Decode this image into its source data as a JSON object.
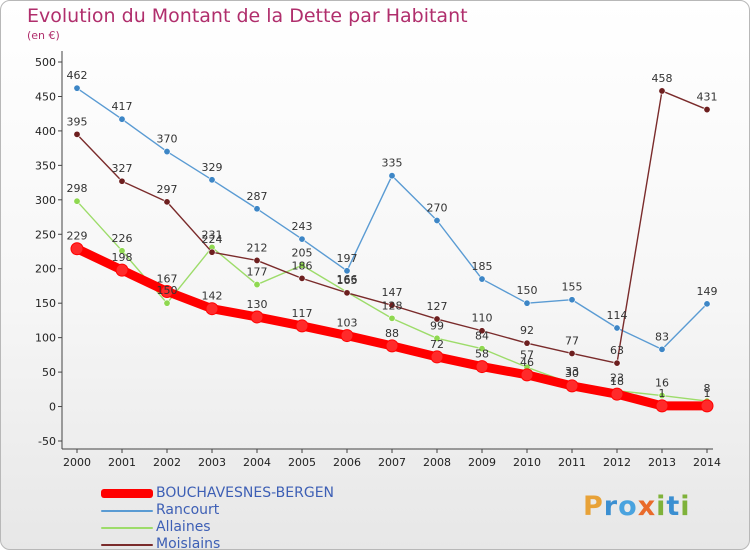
{
  "title": "Evolution du Montant de la Dette par Habitant",
  "subtitle": "(en €)",
  "logo": "Proxiti",
  "chart_data": {
    "type": "line",
    "title": "Evolution du Montant de la Dette par Habitant",
    "subtitle": "(en €)",
    "xlabel": "",
    "ylabel": "",
    "x": [
      "2000",
      "2001",
      "2002",
      "2003",
      "2004",
      "2005",
      "2006",
      "2007",
      "2008",
      "2009",
      "2010",
      "2011",
      "2012",
      "2013",
      "2014"
    ],
    "ylim": [
      -50,
      500
    ],
    "yticks": [
      -50,
      0,
      50,
      100,
      150,
      200,
      250,
      300,
      350,
      400,
      450,
      500
    ],
    "grid": false,
    "legend_position": "bottom",
    "series": [
      {
        "name": "BOUCHAVESNES-BERGEN",
        "color": "#ff0000",
        "point_color": "#ff2a2a",
        "values": [
          229,
          198,
          167,
          142,
          130,
          117,
          103,
          88,
          72,
          58,
          46,
          30,
          18,
          1,
          1
        ]
      },
      {
        "name": "Rancourt",
        "color": "#5a9bd3",
        "point_color": "#3d86c6",
        "values": [
          462,
          417,
          370,
          329,
          287,
          243,
          197,
          335,
          270,
          185,
          150,
          155,
          114,
          83,
          149
        ]
      },
      {
        "name": "Allaines",
        "color": "#9ddc6a",
        "point_color": "#8fd850",
        "values": [
          298,
          226,
          150,
          231,
          177,
          205,
          166,
          128,
          99,
          84,
          57,
          33,
          23,
          16,
          8
        ]
      },
      {
        "name": "Moislains",
        "color": "#7a2b2b",
        "point_color": "#6d1f1f",
        "values": [
          395,
          327,
          297,
          224,
          212,
          186,
          165,
          147,
          127,
          110,
          92,
          77,
          63,
          458,
          431
        ]
      }
    ]
  }
}
